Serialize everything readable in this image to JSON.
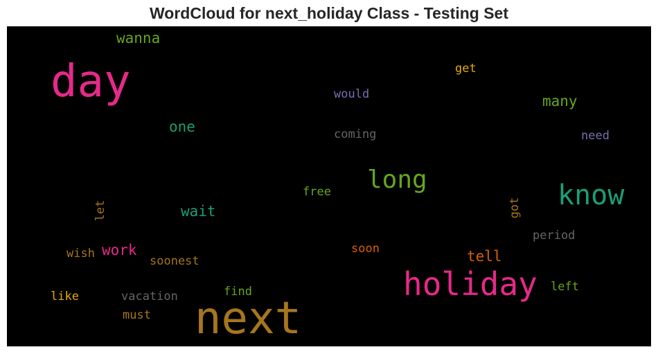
{
  "chart_data": {
    "type": "wordcloud",
    "title": "WordCloud for next_holiday Class - Testing Set",
    "background": "#000000",
    "words": [
      {
        "text": "day",
        "color": "#e7298a",
        "size": 64,
        "rotated": false
      },
      {
        "text": "next",
        "color": "#a6761d",
        "size": 64,
        "rotated": false
      },
      {
        "text": "holiday",
        "color": "#e7298a",
        "size": 46,
        "rotated": false
      },
      {
        "text": "know",
        "color": "#1b9e77",
        "size": 40,
        "rotated": false
      },
      {
        "text": "long",
        "color": "#66a61e",
        "size": 36,
        "rotated": false
      },
      {
        "text": "wanna",
        "color": "#66a61e",
        "size": 21,
        "rotated": false
      },
      {
        "text": "one",
        "color": "#1b9e77",
        "size": 21,
        "rotated": false
      },
      {
        "text": "wait",
        "color": "#1b9e77",
        "size": 21,
        "rotated": false
      },
      {
        "text": "work",
        "color": "#e7298a",
        "size": 21,
        "rotated": false
      },
      {
        "text": "many",
        "color": "#66a61e",
        "size": 21,
        "rotated": false
      },
      {
        "text": "tell",
        "color": "#d95f02",
        "size": 21,
        "rotated": false
      },
      {
        "text": "get",
        "color": "#e6ab02",
        "size": 17,
        "rotated": false
      },
      {
        "text": "would",
        "color": "#7570b3",
        "size": 17,
        "rotated": false
      },
      {
        "text": "coming",
        "color": "#666666",
        "size": 17,
        "rotated": false
      },
      {
        "text": "need",
        "color": "#7570b3",
        "size": 17,
        "rotated": false
      },
      {
        "text": "free",
        "color": "#66a61e",
        "size": 17,
        "rotated": false
      },
      {
        "text": "let",
        "color": "#a6761d",
        "size": 17,
        "rotated": true
      },
      {
        "text": "got",
        "color": "#a6761d",
        "size": 17,
        "rotated": true
      },
      {
        "text": "period",
        "color": "#666666",
        "size": 17,
        "rotated": false
      },
      {
        "text": "wish",
        "color": "#a6761d",
        "size": 17,
        "rotated": false
      },
      {
        "text": "soonest",
        "color": "#a6761d",
        "size": 17,
        "rotated": false
      },
      {
        "text": "soon",
        "color": "#d95f02",
        "size": 17,
        "rotated": false
      },
      {
        "text": "like",
        "color": "#e6ab02",
        "size": 17,
        "rotated": false
      },
      {
        "text": "vacation",
        "color": "#666666",
        "size": 17,
        "rotated": false
      },
      {
        "text": "find",
        "color": "#66a61e",
        "size": 17,
        "rotated": false
      },
      {
        "text": "left",
        "color": "#66a61e",
        "size": 17,
        "rotated": false
      },
      {
        "text": "must",
        "color": "#a6761d",
        "size": 17,
        "rotated": false
      }
    ]
  }
}
